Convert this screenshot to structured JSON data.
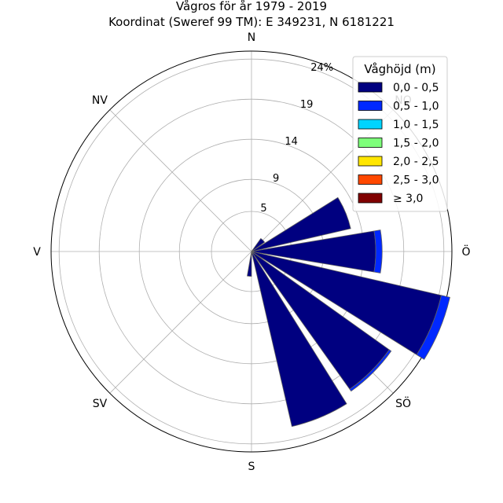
{
  "chart_data": {
    "type": "windrose",
    "title": "Vågros för år 1979 - 2019",
    "subtitle": "Koordinat (Sweref 99 TM): E 349231, N 6181221",
    "directions": [
      {
        "label": "N",
        "angle": 0
      },
      {
        "label": "NO",
        "angle": 45
      },
      {
        "label": "Ö",
        "angle": 90
      },
      {
        "label": "SÖ",
        "angle": 135
      },
      {
        "label": "S",
        "angle": 180
      },
      {
        "label": "SV",
        "angle": 225
      },
      {
        "label": "V",
        "angle": 270
      },
      {
        "label": "NV",
        "angle": 315
      }
    ],
    "radial_ticks": [
      "5",
      "9",
      "14",
      "19",
      "24%"
    ],
    "radial_tick_values": [
      5,
      9,
      14,
      19,
      24
    ],
    "r_max": 25,
    "legend": {
      "title": "Våghöjd (m)",
      "placement": "upper-right",
      "bins": [
        {
          "label": "0,0 - 0,5",
          "color": "#000080"
        },
        {
          "label": "0,5 - 1,0",
          "color": "#0028ff"
        },
        {
          "label": "1,0 - 1,5",
          "color": "#00d4ff"
        },
        {
          "label": "1,5 - 2,0",
          "color": "#7dff7a"
        },
        {
          "label": "2,0 - 2,5",
          "color": "#ffe600"
        },
        {
          "label": "2,5 - 3,0",
          "color": "#ff4800"
        },
        {
          "label": "≥ 3,0",
          "color": "#800000"
        }
      ]
    },
    "sectors": [
      {
        "direction_deg": 0,
        "values": [
          0,
          0,
          0,
          0,
          0,
          0,
          0
        ]
      },
      {
        "direction_deg": 22.5,
        "values": [
          0,
          0,
          0,
          0,
          0,
          0,
          0
        ]
      },
      {
        "direction_deg": 45,
        "values": [
          2.0,
          0,
          0,
          0,
          0,
          0,
          0
        ]
      },
      {
        "direction_deg": 67.5,
        "values": [
          12.7,
          0,
          0,
          0,
          0,
          0,
          0
        ]
      },
      {
        "direction_deg": 90,
        "values": [
          15.5,
          0.8,
          0,
          0,
          0,
          0,
          0
        ]
      },
      {
        "direction_deg": 112.5,
        "values": [
          24.3,
          1.1,
          0,
          0,
          0,
          0,
          0
        ]
      },
      {
        "direction_deg": 135,
        "values": [
          21.1,
          0.3,
          0,
          0,
          0,
          0,
          0
        ]
      },
      {
        "direction_deg": 157.5,
        "values": [
          22.4,
          0,
          0,
          0,
          0,
          0,
          0
        ]
      },
      {
        "direction_deg": 180,
        "values": [
          0,
          0,
          0,
          0,
          0,
          0,
          0
        ]
      },
      {
        "direction_deg": 202.5,
        "values": [
          0,
          0,
          0,
          0,
          0,
          0,
          0
        ]
      },
      {
        "direction_deg": 225,
        "values": [
          0,
          0,
          0,
          0,
          0,
          0,
          0
        ]
      },
      {
        "direction_deg": 247.5,
        "values": [
          0,
          0,
          0,
          0,
          0,
          0,
          0
        ]
      },
      {
        "direction_deg": 270,
        "values": [
          0,
          0,
          0,
          0,
          0,
          0,
          0
        ]
      },
      {
        "direction_deg": 292.5,
        "values": [
          0,
          0,
          0,
          0,
          0,
          0,
          0
        ]
      },
      {
        "direction_deg": 315,
        "values": [
          0,
          0,
          0,
          0,
          0,
          0,
          0
        ]
      },
      {
        "direction_deg": 337.5,
        "values": [
          0,
          0,
          0,
          0,
          0,
          0,
          0
        ]
      }
    ],
    "small_sectors": [
      {
        "direction_deg": 185,
        "values": [
          3.1,
          0,
          0,
          0,
          0,
          0,
          0
        ]
      }
    ],
    "colors": {
      "edge": "#606060",
      "grid": "#b0b0b0",
      "frame": "#000000"
    }
  }
}
